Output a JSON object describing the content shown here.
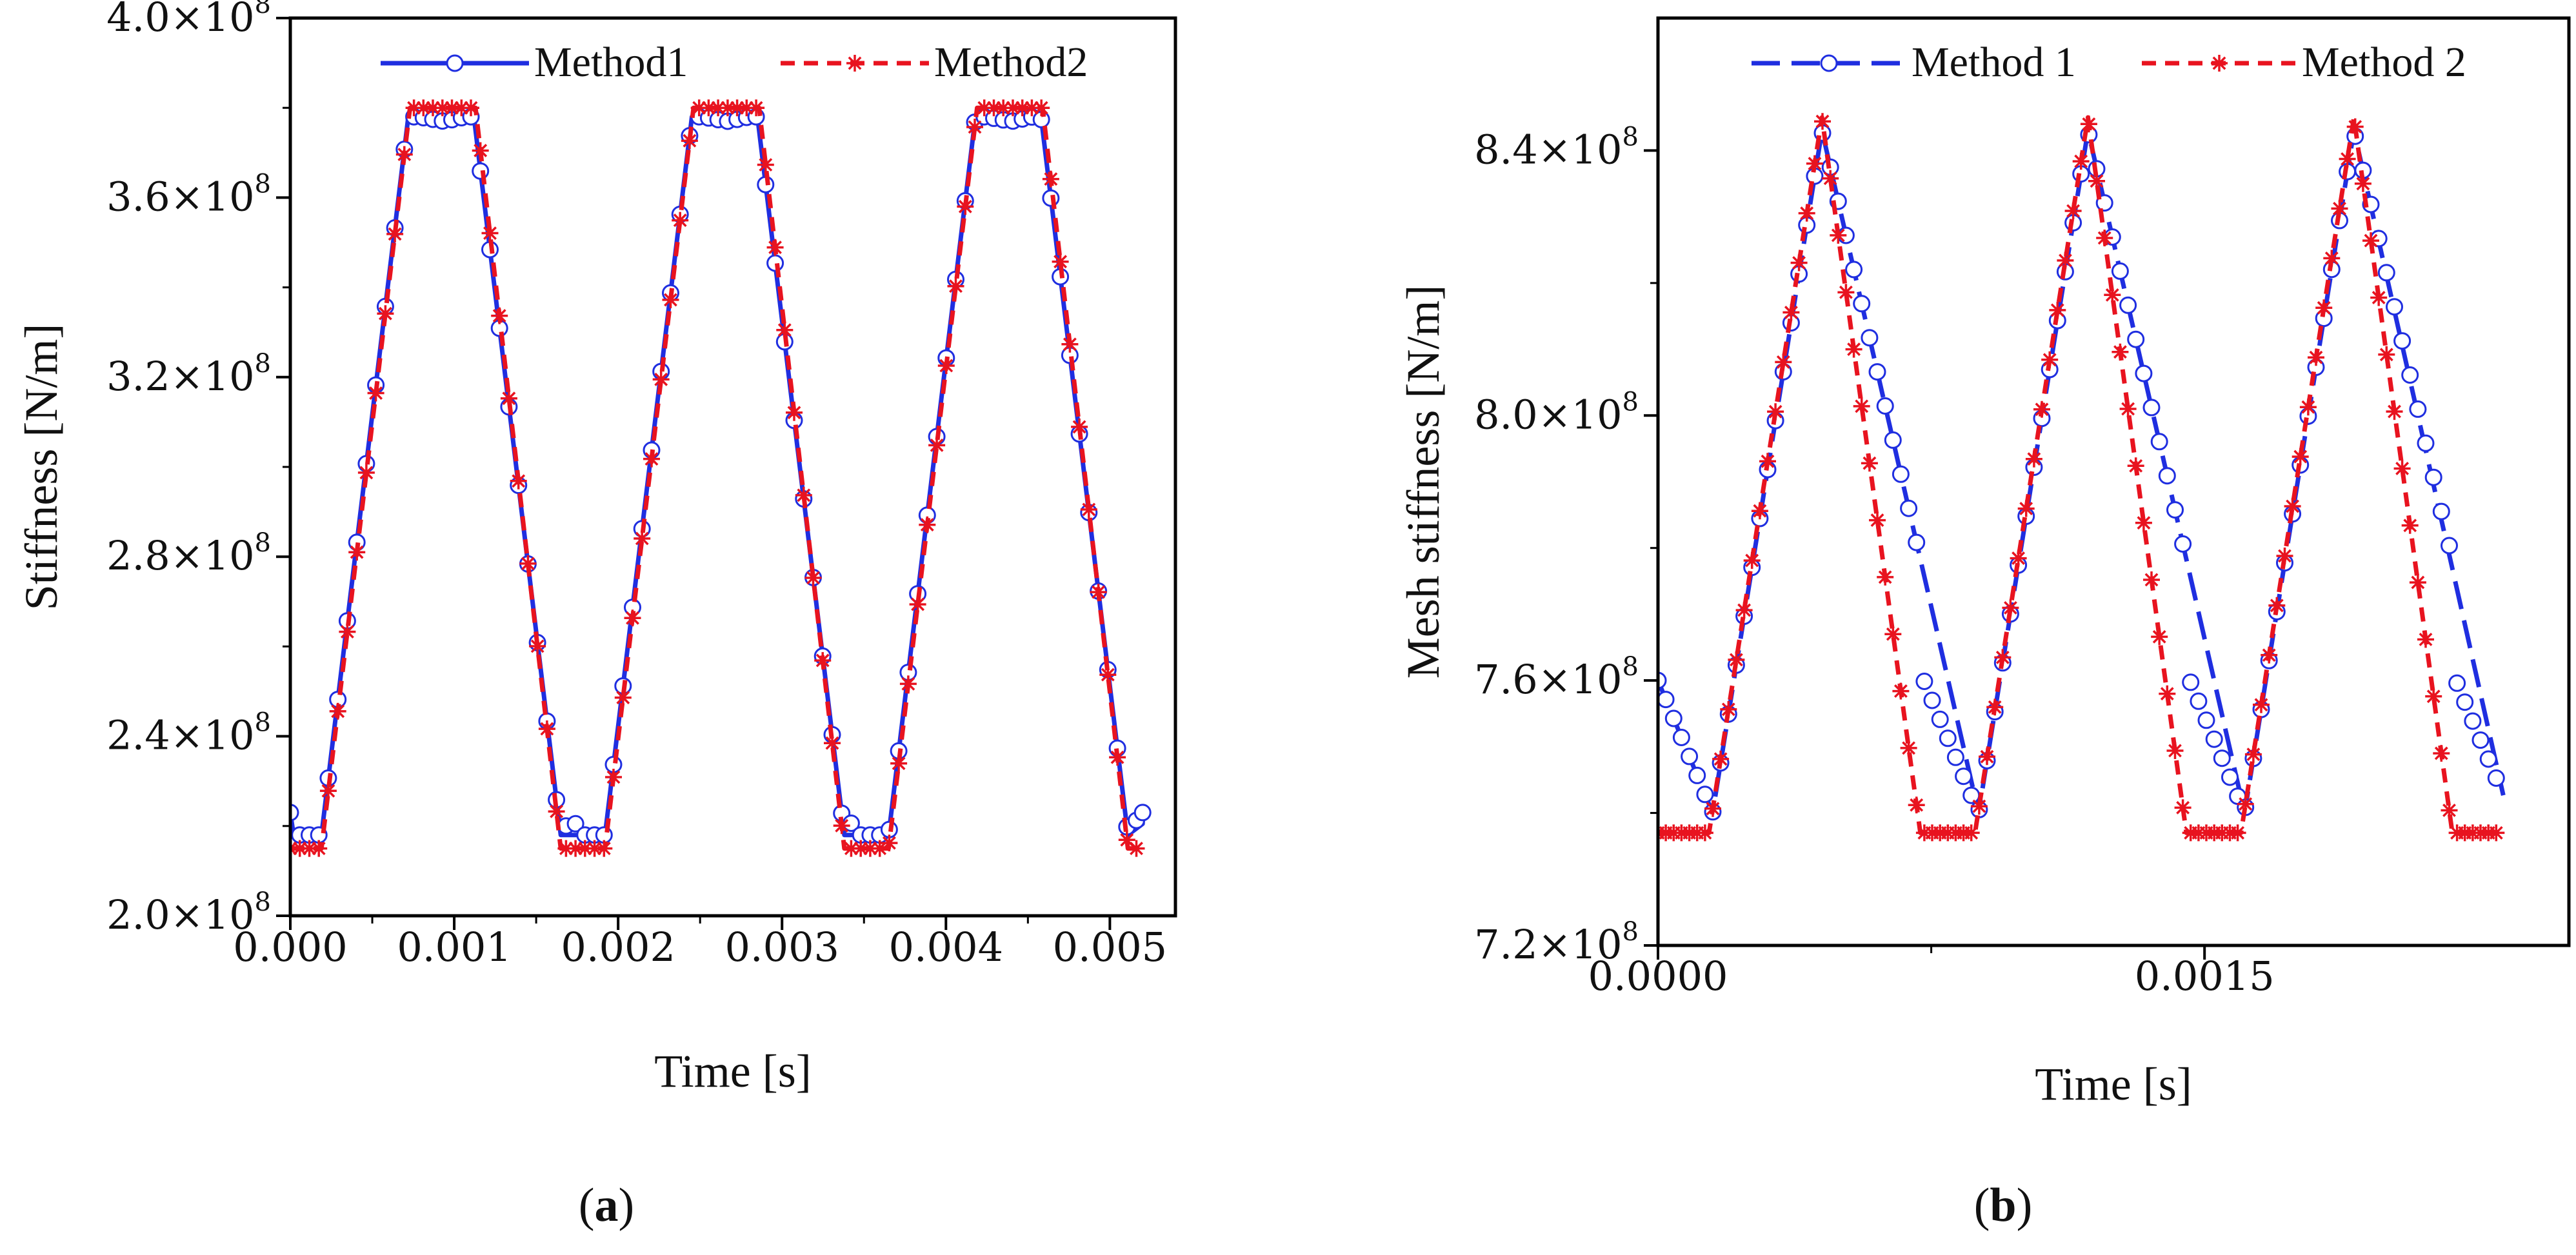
{
  "chart_data": [
    {
      "type": "line",
      "panel": "a",
      "caption": {
        "open": "(",
        "letter": "a",
        "close": ")"
      },
      "xlabel": "Time [s]",
      "ylabel": "Stiffness [N/m]",
      "xlim": [
        0,
        0.0054
      ],
      "ylim": [
        200000000,
        400000000
      ],
      "xticks": [
        0,
        0.001,
        0.002,
        0.003,
        0.004,
        0.005
      ],
      "xtick_labels": [
        "0.000",
        "0.001",
        "0.002",
        "0.003",
        "0.004",
        "0.005"
      ],
      "yticks": [
        200000000,
        240000000,
        280000000,
        320000000,
        360000000,
        400000000
      ],
      "ytick_labels": [
        {
          "mantissa": "2.0",
          "exp": "8"
        },
        {
          "mantissa": "2.4",
          "exp": "8"
        },
        {
          "mantissa": "2.8",
          "exp": "8"
        },
        {
          "mantissa": "3.2",
          "exp": "8"
        },
        {
          "mantissa": "3.6",
          "exp": "8"
        },
        {
          "mantissa": "4.0",
          "exp": "8"
        }
      ],
      "legend_position": "top-right",
      "series": [
        {
          "name": "Method1",
          "color": "#1f2ee0",
          "line_style": "solid",
          "marker": "open-circle",
          "period": 0.00173,
          "keypoints": [
            [
              0,
              223000000
            ],
            [
              2e-05,
              218000000
            ],
            [
              0.00019,
              218000000
            ],
            [
              0.00072,
              378000000
            ],
            [
              0.00078,
              378000000
            ],
            [
              0.00094,
              377000000
            ],
            [
              0.00107,
              378000000
            ],
            [
              0.00112,
              378000000
            ],
            [
              0.00165,
              218000000
            ]
          ],
          "end_x": 0.0052,
          "end_point": [
            0.0052,
            223000000
          ],
          "marker_step": 5.8e-05
        },
        {
          "name": "Method2",
          "color": "#e8131f",
          "line_style": "dashed",
          "marker": "asterisk",
          "period": 0.00173,
          "keypoints": [
            [
              0,
              215000000
            ],
            [
              0.00019,
              215000000
            ],
            [
              0.00073,
              380000000
            ],
            [
              0.00113,
              380000000
            ],
            [
              0.00165,
              215000000
            ]
          ],
          "end_x": 0.00518,
          "marker_step": 5.8e-05
        }
      ]
    },
    {
      "type": "line",
      "panel": "b",
      "caption": {
        "open": "(",
        "letter": "b",
        "close": ")"
      },
      "xlabel": "Time [s]",
      "ylabel": "Mesh stiffness [N/m]",
      "xlim": [
        0,
        0.0025
      ],
      "ylim": [
        720000000,
        860000000
      ],
      "xticks": [
        0,
        0.0015
      ],
      "xtick_labels": [
        "0.0000",
        "0.0015"
      ],
      "yticks": [
        720000000,
        760000000,
        800000000,
        840000000
      ],
      "ytick_labels": [
        {
          "mantissa": "7.2",
          "exp": "8"
        },
        {
          "mantissa": "7.6",
          "exp": "8"
        },
        {
          "mantissa": "8.0",
          "exp": "8"
        },
        {
          "mantissa": "8.4",
          "exp": "8"
        }
      ],
      "legend_position": "top",
      "series": [
        {
          "name": "Method 1",
          "color": "#1f2ee0",
          "line_style": "long-dash",
          "marker": "open-circle",
          "period": 0.00073,
          "keypoints": [
            [
              0,
              760000000
            ],
            [
              0.00015,
              740000000
            ],
            [
              0.00045,
              843000000
            ],
            [
              0.00088,
              740000000
            ]
          ],
          "end_x": 0.00232,
          "marker_step": 2.15e-05
        },
        {
          "name": "Method 2",
          "color": "#e8131f",
          "line_style": "dashed",
          "marker": "asterisk",
          "period": 0.00073,
          "keypoints": [
            [
              0,
              737000000
            ],
            [
              0.00014,
              737000000
            ],
            [
              0.00045,
              845000000
            ],
            [
              0.00072,
              737000000
            ]
          ],
          "end_x": 0.00232,
          "marker_step": 2.15e-05
        }
      ]
    }
  ]
}
